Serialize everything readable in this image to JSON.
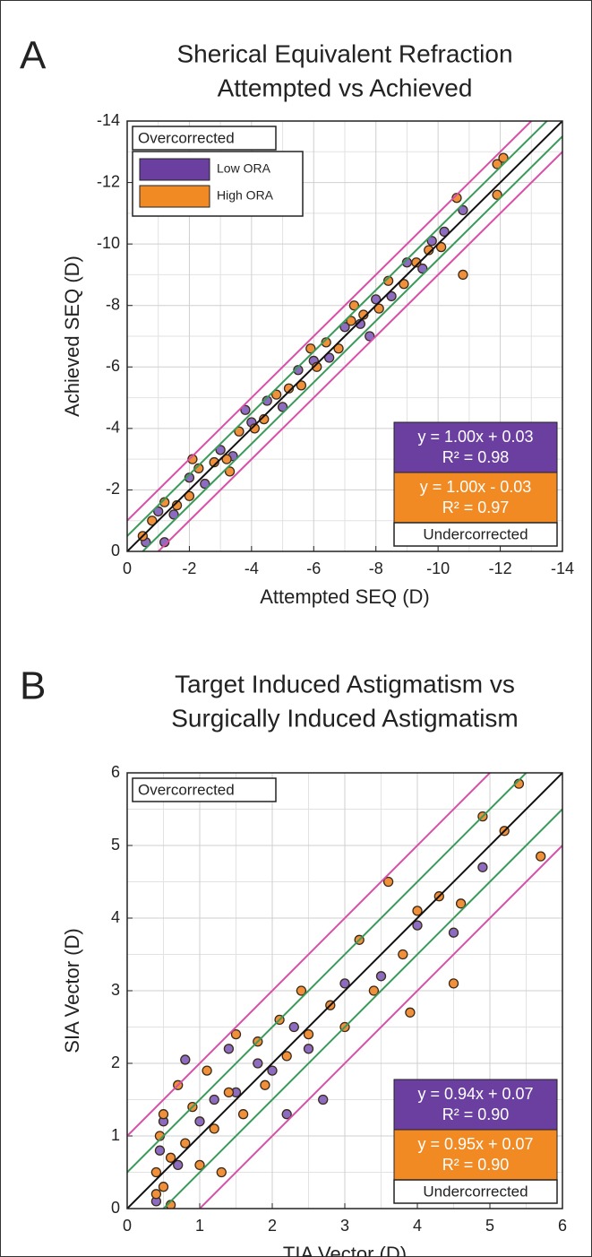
{
  "chart_data": [
    {
      "type": "scatter",
      "panel_label": "A",
      "title": [
        "Sherical Equivalent Refraction",
        "Attempted vs Achieved"
      ],
      "x_label": "Attempted SEQ (D)",
      "y_label": "Achieved SEQ (D)",
      "xlim": [
        0,
        -14
      ],
      "ylim": [
        0,
        -14
      ],
      "xticks": [
        0,
        -2,
        -4,
        -6,
        -8,
        -10,
        -12,
        -14
      ],
      "yticks": [
        0,
        -2,
        -4,
        -6,
        -8,
        -10,
        -12,
        -14
      ],
      "minor_ticks": [
        -1,
        -3,
        -5,
        -7,
        -9,
        -11,
        -13
      ],
      "grid": true,
      "legend": true,
      "series": [
        {
          "name": "Low ORA",
          "color": "#8b6cc0",
          "swatch": "#6a3fa0",
          "x": [
            -0.6,
            -1.0,
            -1.5,
            -2.0,
            -2.5,
            -3.0,
            -3.4,
            -4.0,
            -4.5,
            -5.0,
            -5.5,
            -6.0,
            -6.5,
            -7.0,
            -7.5,
            -8.0,
            -8.5,
            -9.0,
            -9.5,
            -9.8,
            -10.2,
            -3.8,
            -7.8,
            -1.2,
            -10.8
          ],
          "y": [
            -0.3,
            -1.3,
            -1.2,
            -2.4,
            -2.2,
            -3.3,
            -3.1,
            -4.2,
            -4.9,
            -4.7,
            -5.9,
            -6.2,
            -6.3,
            -7.3,
            -7.4,
            -8.2,
            -8.3,
            -9.4,
            -9.2,
            -10.1,
            -10.4,
            -4.6,
            -7.0,
            -0.3,
            -11.1
          ]
        },
        {
          "name": "High ORA",
          "color": "#f0903a",
          "swatch": "#f28a24",
          "x": [
            -0.5,
            -0.8,
            -1.2,
            -1.6,
            -2.0,
            -2.3,
            -2.8,
            -3.2,
            -3.6,
            -4.1,
            -4.4,
            -4.8,
            -5.2,
            -5.6,
            -6.1,
            -6.4,
            -6.8,
            -7.2,
            -7.6,
            -8.1,
            -8.4,
            -8.9,
            -9.3,
            -9.7,
            -10.1,
            -10.6,
            -10.8,
            -11.9,
            -12.1,
            -11.9,
            -5.9,
            -3.3,
            -2.1,
            -7.3
          ],
          "y": [
            -0.5,
            -1.0,
            -1.6,
            -1.5,
            -1.8,
            -2.7,
            -2.9,
            -3.0,
            -3.9,
            -4.0,
            -4.3,
            -5.1,
            -5.3,
            -5.4,
            -6.0,
            -6.8,
            -6.6,
            -7.5,
            -7.7,
            -7.9,
            -8.8,
            -8.7,
            -9.4,
            -9.8,
            -9.9,
            -11.5,
            -9.0,
            -12.6,
            -12.8,
            -11.6,
            -6.6,
            -2.6,
            -3.0,
            -8.0
          ]
        }
      ],
      "reference_lines": [
        {
          "color": "#d94fa8",
          "slope": 1,
          "intercept": -1
        },
        {
          "color": "#d94fa8",
          "slope": 1,
          "intercept": 1
        },
        {
          "color": "#3a9a5a",
          "slope": 1,
          "intercept": -0.5
        },
        {
          "color": "#3a9a5a",
          "slope": 1,
          "intercept": 0.5
        },
        {
          "color": "#111111",
          "slope": 1,
          "intercept": 0
        }
      ],
      "over_label": "Overcorrected",
      "under_label": "Undercorrected",
      "fits": [
        {
          "color": "#6a3fa0",
          "equation": "y = 1.00x + 0.03",
          "r2": "R² = 0.98"
        },
        {
          "color": "#f28a24",
          "equation": "y = 1.00x - 0.03",
          "r2": "R² = 0.97"
        }
      ]
    },
    {
      "type": "scatter",
      "panel_label": "B",
      "title": [
        "Target Induced Astigmatism vs",
        "Surgically Induced Astigmatism"
      ],
      "x_label": "TIA Vector (D)",
      "y_label": "SIA Vector (D)",
      "xlim": [
        0,
        6
      ],
      "ylim": [
        0,
        6
      ],
      "xticks": [
        0,
        1,
        2,
        3,
        4,
        5,
        6
      ],
      "yticks": [
        0,
        1,
        2,
        3,
        4,
        5,
        6
      ],
      "minor_ticks": [
        0.5,
        1.5,
        2.5,
        3.5,
        4.5,
        5.5
      ],
      "grid": true,
      "legend": false,
      "series": [
        {
          "color": "#8b6cc0",
          "x": [
            0.4,
            0.45,
            0.5,
            0.7,
            0.8,
            1.0,
            1.2,
            1.5,
            1.8,
            2.0,
            2.3,
            2.5,
            2.7,
            3.0,
            3.5,
            4.0,
            4.5,
            4.9,
            1.4,
            2.2
          ],
          "y": [
            0.1,
            0.8,
            1.2,
            0.6,
            2.05,
            1.2,
            1.5,
            1.6,
            2.0,
            1.9,
            2.5,
            2.2,
            1.5,
            3.1,
            3.2,
            3.9,
            3.8,
            4.7,
            2.2,
            1.3
          ]
        },
        {
          "color": "#f0903a",
          "x": [
            0.4,
            0.4,
            0.45,
            0.5,
            0.5,
            0.6,
            0.7,
            0.8,
            0.9,
            1.0,
            1.1,
            1.2,
            1.4,
            1.5,
            1.6,
            1.8,
            1.9,
            2.1,
            2.2,
            2.4,
            2.5,
            2.8,
            3.0,
            3.2,
            3.4,
            3.6,
            3.8,
            4.0,
            4.3,
            4.6,
            4.9,
            5.2,
            5.4,
            5.7,
            4.5,
            3.9,
            0.6,
            1.3
          ],
          "y": [
            0.2,
            0.5,
            1.0,
            0.3,
            1.3,
            0.7,
            1.7,
            0.9,
            1.4,
            0.6,
            1.9,
            1.1,
            1.6,
            2.4,
            1.3,
            2.3,
            1.7,
            2.6,
            2.1,
            3.0,
            2.4,
            2.8,
            2.5,
            3.7,
            3.0,
            4.5,
            3.5,
            4.1,
            4.3,
            4.2,
            5.4,
            5.2,
            5.85,
            4.85,
            3.1,
            2.7,
            0.05,
            0.5
          ]
        }
      ],
      "reference_lines": [
        {
          "color": "#d94fa8",
          "slope": 1,
          "intercept": -1
        },
        {
          "color": "#d94fa8",
          "slope": 1,
          "intercept": 1
        },
        {
          "color": "#3a9a5a",
          "slope": 1,
          "intercept": -0.5
        },
        {
          "color": "#3a9a5a",
          "slope": 1,
          "intercept": 0.5
        },
        {
          "color": "#111111",
          "slope": 1,
          "intercept": 0
        }
      ],
      "over_label": "Overcorrected",
      "under_label": "Undercorrected",
      "fits": [
        {
          "color": "#6a3fa0",
          "equation": "y = 0.94x + 0.07",
          "r2": "R² = 0.90"
        },
        {
          "color": "#f28a24",
          "equation": "y = 0.95x + 0.07",
          "r2": "R² = 0.90"
        }
      ]
    }
  ]
}
